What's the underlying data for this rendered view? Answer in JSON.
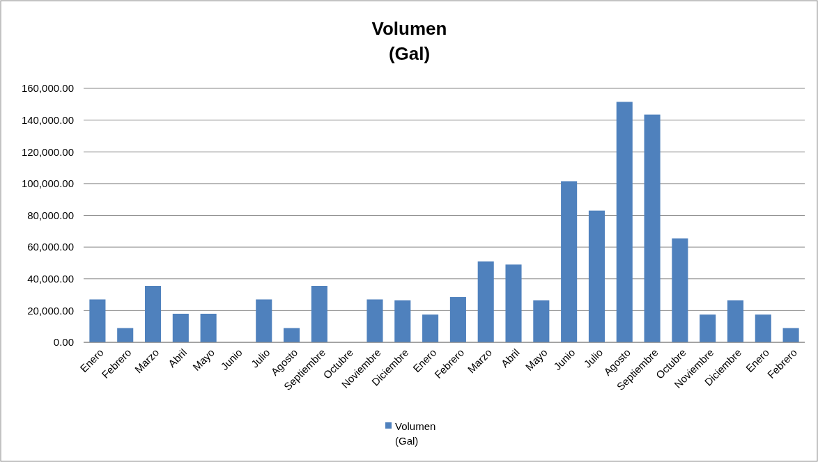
{
  "chart_data": {
    "type": "bar",
    "title": "Volumen\n(Gal)",
    "categories": [
      "Enero",
      "Febrero",
      "Marzo",
      "Abril",
      "Mayo",
      "Junio",
      "Julio",
      "Agosto",
      "Septiembre",
      "Octubre",
      "Noviembre",
      "Diciembre",
      "Enero",
      "Febrero",
      "Marzo",
      "Abril",
      "Mayo",
      "Junio",
      "Julio",
      "Agosto",
      "Septiembre",
      "Octubre",
      "Noviembre",
      "Diciembre",
      "Enero",
      "Febrero"
    ],
    "series": [
      {
        "name": "Volumen\n(Gal)",
        "color": "#4f81bd",
        "values": [
          27000,
          9000,
          35500,
          18000,
          18000,
          0,
          27000,
          9000,
          35500,
          0,
          27000,
          26500,
          17500,
          28500,
          51000,
          49000,
          26500,
          101500,
          83000,
          151500,
          143500,
          65500,
          17500,
          26500,
          17500,
          9000
        ]
      }
    ],
    "ylim": [
      0,
      160000
    ],
    "yticks": [
      {
        "value": 0,
        "label": "0.00"
      },
      {
        "value": 20000,
        "label": "20,000.00"
      },
      {
        "value": 40000,
        "label": "40,000.00"
      },
      {
        "value": 60000,
        "label": "60,000.00"
      },
      {
        "value": 80000,
        "label": "80,000.00"
      },
      {
        "value": 100000,
        "label": "100,000.00"
      },
      {
        "value": 120000,
        "label": "120,000.00"
      },
      {
        "value": 140000,
        "label": "140,000.00"
      },
      {
        "value": 160000,
        "label": "160,000.00"
      }
    ],
    "grid": "y",
    "legend": "bottom"
  }
}
